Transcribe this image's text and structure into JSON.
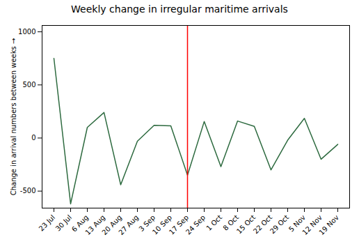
{
  "chart_data": {
    "type": "line",
    "title": "Weekly change in irregular maritime arrivals",
    "y_label": "Change in arrival numbers between weeks",
    "categories": [
      "23 Jul",
      "30 Jul",
      "6 Aug",
      "13 Aug",
      "20 Aug",
      "27 Aug",
      "3 Sep",
      "10 Sep",
      "17 Sep",
      "24 Sep",
      "1 Oct",
      "8 Oct",
      "15 Oct",
      "22 Oct",
      "29 Oct",
      "5 Nov",
      "12 Nov",
      "19 Nov"
    ],
    "values": [
      750,
      -620,
      100,
      240,
      -440,
      -30,
      120,
      115,
      -350,
      155,
      -270,
      160,
      110,
      -300,
      -20,
      185,
      -200,
      -60
    ],
    "color": "#2d6a3f",
    "vlines": [
      {
        "x": "17 Sep",
        "color": "#ff0000"
      }
    ],
    "ylim": [
      -660,
      1060
    ],
    "yticks": [
      -500,
      0,
      500,
      1000
    ],
    "grid": false
  }
}
